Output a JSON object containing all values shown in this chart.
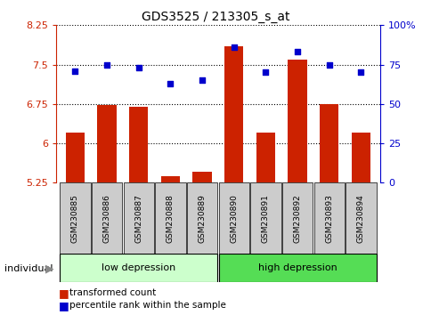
{
  "title": "GDS3525 / 213305_s_at",
  "samples": [
    "GSM230885",
    "GSM230886",
    "GSM230887",
    "GSM230888",
    "GSM230889",
    "GSM230890",
    "GSM230891",
    "GSM230892",
    "GSM230893",
    "GSM230894"
  ],
  "bar_values": [
    6.2,
    6.73,
    6.69,
    5.38,
    5.46,
    7.85,
    6.2,
    7.6,
    6.75,
    6.2
  ],
  "dot_values": [
    71,
    75,
    73,
    63,
    65,
    86,
    70,
    83,
    75,
    70
  ],
  "bar_color": "#cc2200",
  "dot_color": "#0000cc",
  "ylim_left": [
    5.25,
    8.25
  ],
  "ylim_right": [
    0,
    100
  ],
  "yticks_left": [
    5.25,
    6.0,
    6.75,
    7.5,
    8.25
  ],
  "ytick_labels_left": [
    "5.25",
    "6",
    "6.75",
    "7.5",
    "8.25"
  ],
  "yticks_right": [
    0,
    25,
    50,
    75,
    100
  ],
  "ytick_labels_right": [
    "0",
    "25",
    "50",
    "75",
    "100%"
  ],
  "group1_label": "low depression",
  "group2_label": "high depression",
  "group1_color": "#ccffcc",
  "group2_color": "#55dd55",
  "individual_label": "individual",
  "legend_bar": "transformed count",
  "legend_dot": "percentile rank within the sample",
  "grid_color": "black",
  "tick_bg": "#cccccc"
}
